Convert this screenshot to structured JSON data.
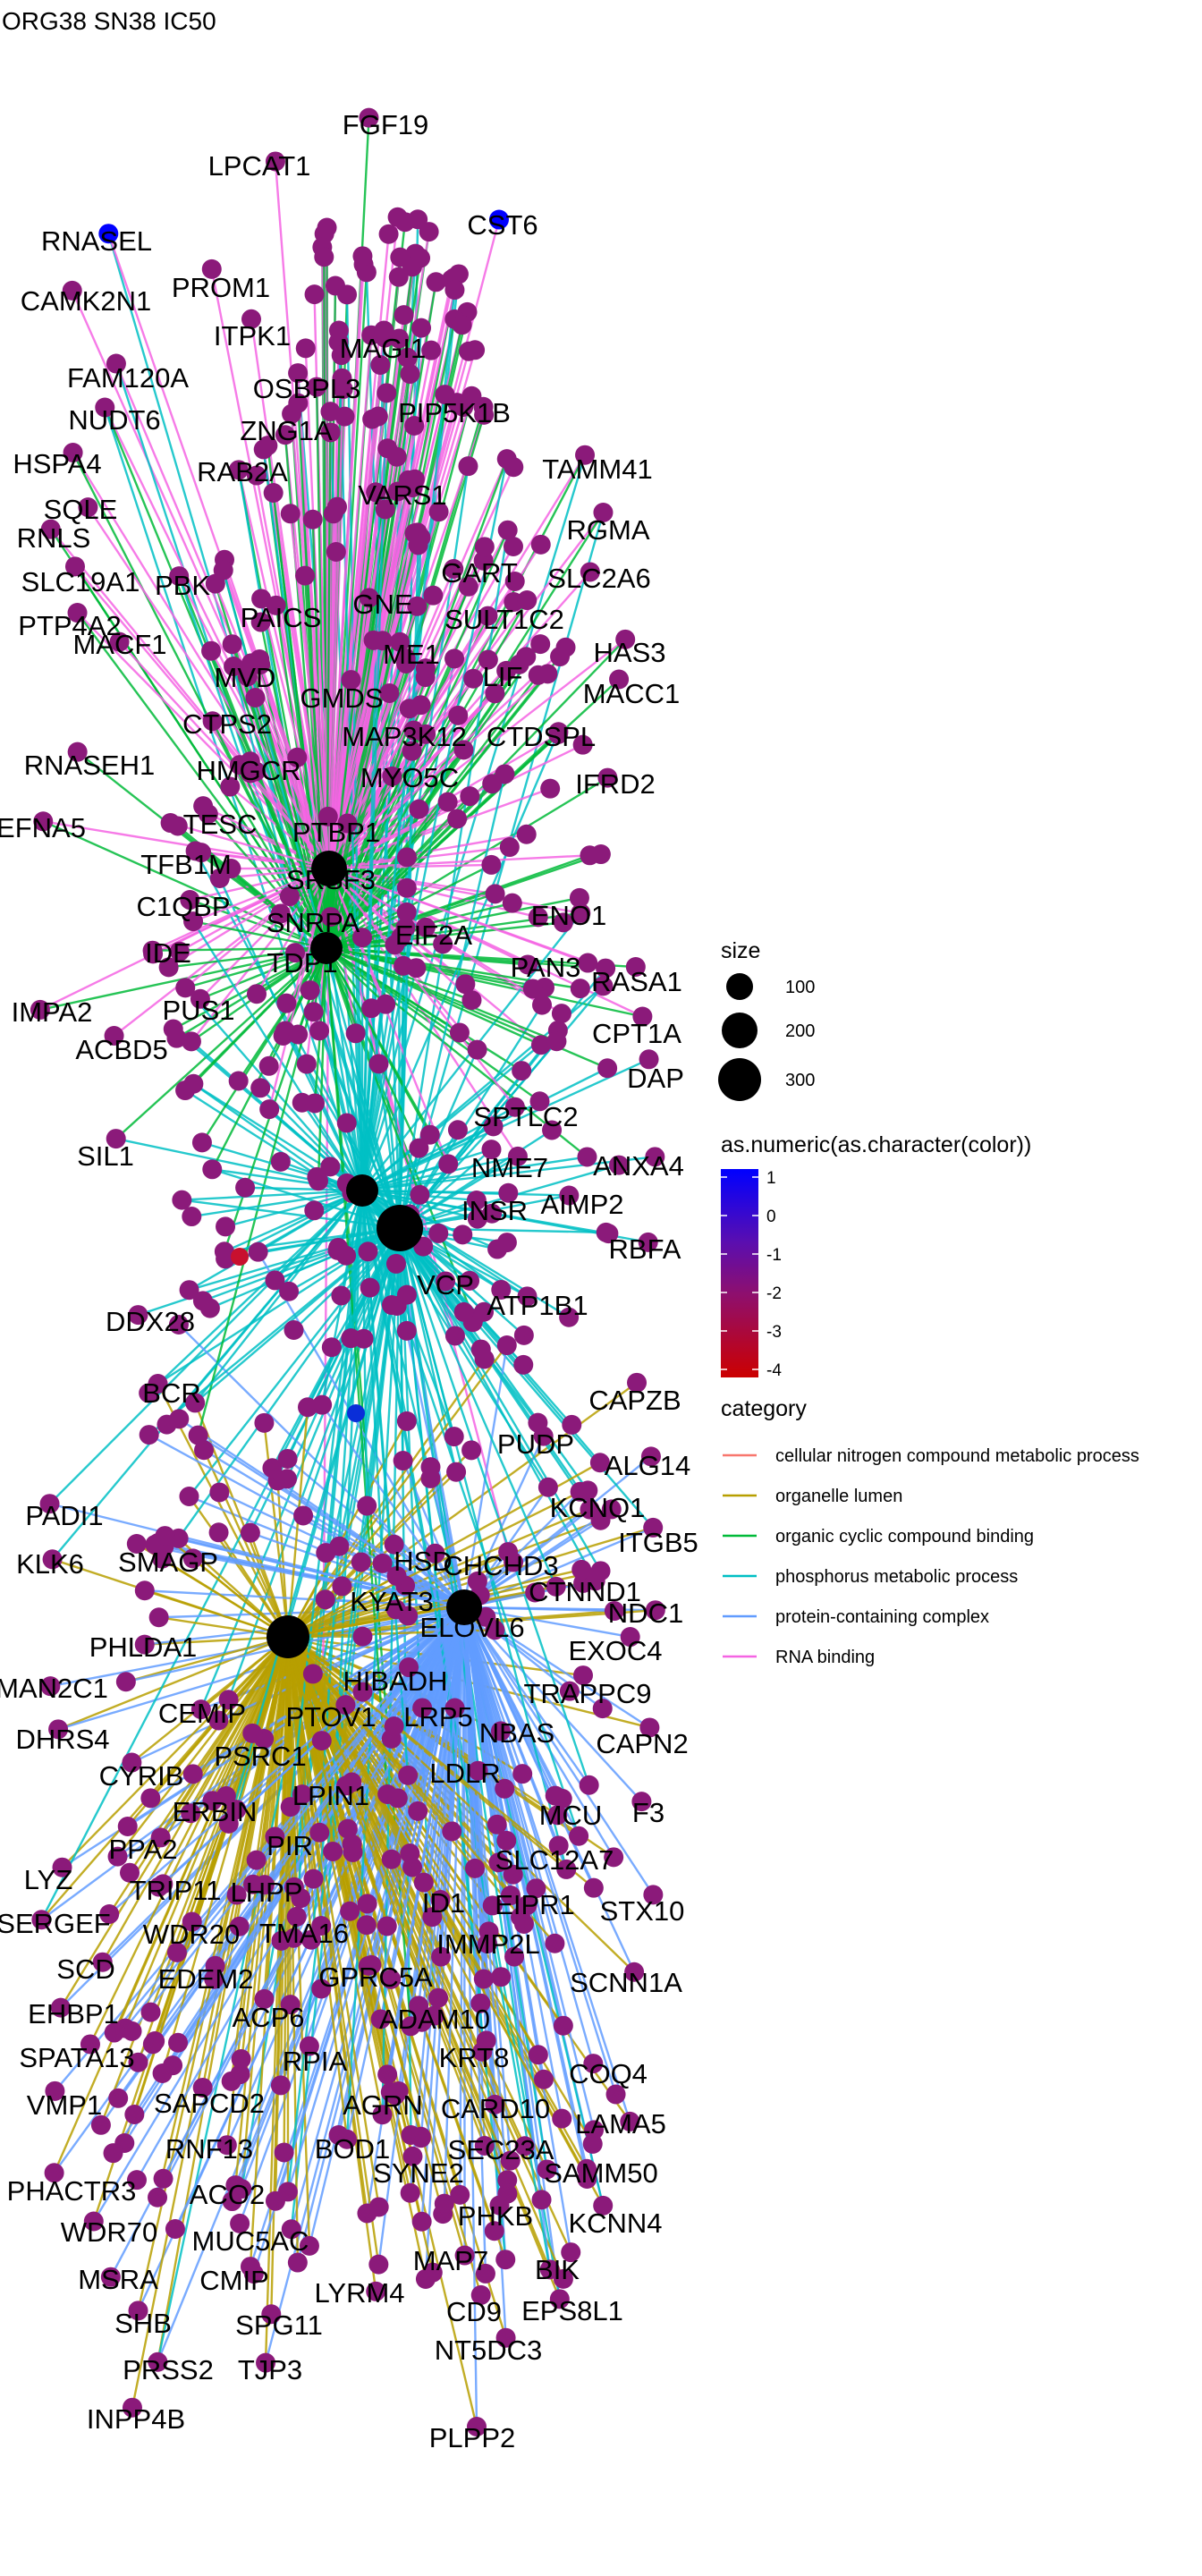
{
  "title": "ORG38 SN38 IC50",
  "legend": {
    "size_title": "size",
    "size_items": [
      "100",
      "200",
      "300"
    ],
    "color_title": "as.numeric(as.character(color))",
    "color_ticks": [
      "1",
      "0",
      "-1",
      "-2",
      "-3",
      "-4"
    ],
    "color_range": [
      -4.3,
      1.1
    ],
    "color_low": "#cc0000",
    "color_high": "#0000ff",
    "category_title": "category",
    "categories": [
      {
        "name": "cellular nitrogen compound metabolic process",
        "color": "#f8766d"
      },
      {
        "name": "organelle lumen",
        "color": "#b79f00"
      },
      {
        "name": "organic cyclic compound binding",
        "color": "#00ba38"
      },
      {
        "name": "phosphorus metabolic process",
        "color": "#00bfc4"
      },
      {
        "name": "protein-containing complex",
        "color": "#619cff"
      },
      {
        "name": "RNA binding",
        "color": "#f564e3"
      }
    ]
  },
  "gene_labels": [
    "FGF19",
    "LPCAT1",
    "CST6",
    "RNASEL",
    "CAMK2N1",
    "PROM1",
    "ITPK1",
    "MAGI1",
    "FAM120A",
    "OSBPL3",
    "NUDT6",
    "ZNG1A",
    "PIP5K1B",
    "HSPA4",
    "RAB2A",
    "TAMM41",
    "SQLE",
    "VARS1",
    "RGMA",
    "RNLS",
    "SLC19A1",
    "PBK",
    "GART",
    "SLC2A6",
    "PTP4A2",
    "PAICS",
    "GNE",
    "SULT1C2",
    "MACF1",
    "HAS3",
    "ME1",
    "MVD",
    "LIF",
    "GMDS",
    "MACC1",
    "CTPS2",
    "MAP3K12",
    "CTDSPL",
    "HMGCR",
    "MYO5C",
    "IFRD2",
    "RNASEH1",
    "TESC",
    "PTBP1",
    "EFNA5",
    "TFB1M",
    "SRSF3",
    "C1QBP",
    "SNRPA",
    "EIF2A",
    "ENO1",
    "IDE",
    "TDP1",
    "PAN3",
    "RASA1",
    "IMPA2",
    "PUS1",
    "CPT1A",
    "ACBD5",
    "DAP",
    "SPTLC2",
    "SIL1",
    "NME7",
    "ANXA4",
    "AIMP2",
    "INSR",
    "RBFA",
    "VCP",
    "ATP1B1",
    "DDX28",
    "BCR",
    "CAPZB",
    "PUDP",
    "ALG14",
    "KCNQ1",
    "PADI1",
    "ITGB5",
    "SMAGP",
    "KLK6",
    "HSD",
    "CHCHD3",
    "CTNND1",
    "NDC1",
    "KYAT3",
    "ELOVL6",
    "PHLDA1",
    "EXOC4",
    "MAN2C1",
    "HIBADH",
    "TRAPPC9",
    "CEMIP",
    "PTOV1",
    "LRP5",
    "DHRS4",
    "NBAS",
    "CAPN2",
    "CYRIB",
    "PSRC1",
    "LDLR",
    "ERBIN",
    "LPIN1",
    "MCU",
    "F3",
    "PPA2",
    "PIR",
    "SLC12A7",
    "LYZ",
    "TRIP11",
    "LHPP",
    "ID1",
    "EIPR1",
    "STX10",
    "SERGEF",
    "WDR20",
    "TMA16",
    "IMMP2L",
    "SCD",
    "SCNN1A",
    "EDEM2",
    "GPRC5A",
    "EHBP1",
    "ACP6",
    "ADAM10",
    "SPATA13",
    "KRT8",
    "RPIA",
    "COQ4",
    "VMP1",
    "SAPCD2",
    "AGRN",
    "CARD10",
    "RNF13",
    "BOD1",
    "LAMA5",
    "SEC23A",
    "SYNE2",
    "SAMM50",
    "PHACTR3",
    "ACO2",
    "KCNN4",
    "WDR70",
    "MUC5AC",
    "PHKB",
    "MSRA",
    "CMIP",
    "MAP7",
    "BIK",
    "SHB",
    "LYRM4",
    "SPG11",
    "EPS8L1",
    "CD9",
    "PRSS2",
    "TJP3",
    "NT5DC3",
    "INPP4B",
    "PLPP2"
  ]
}
